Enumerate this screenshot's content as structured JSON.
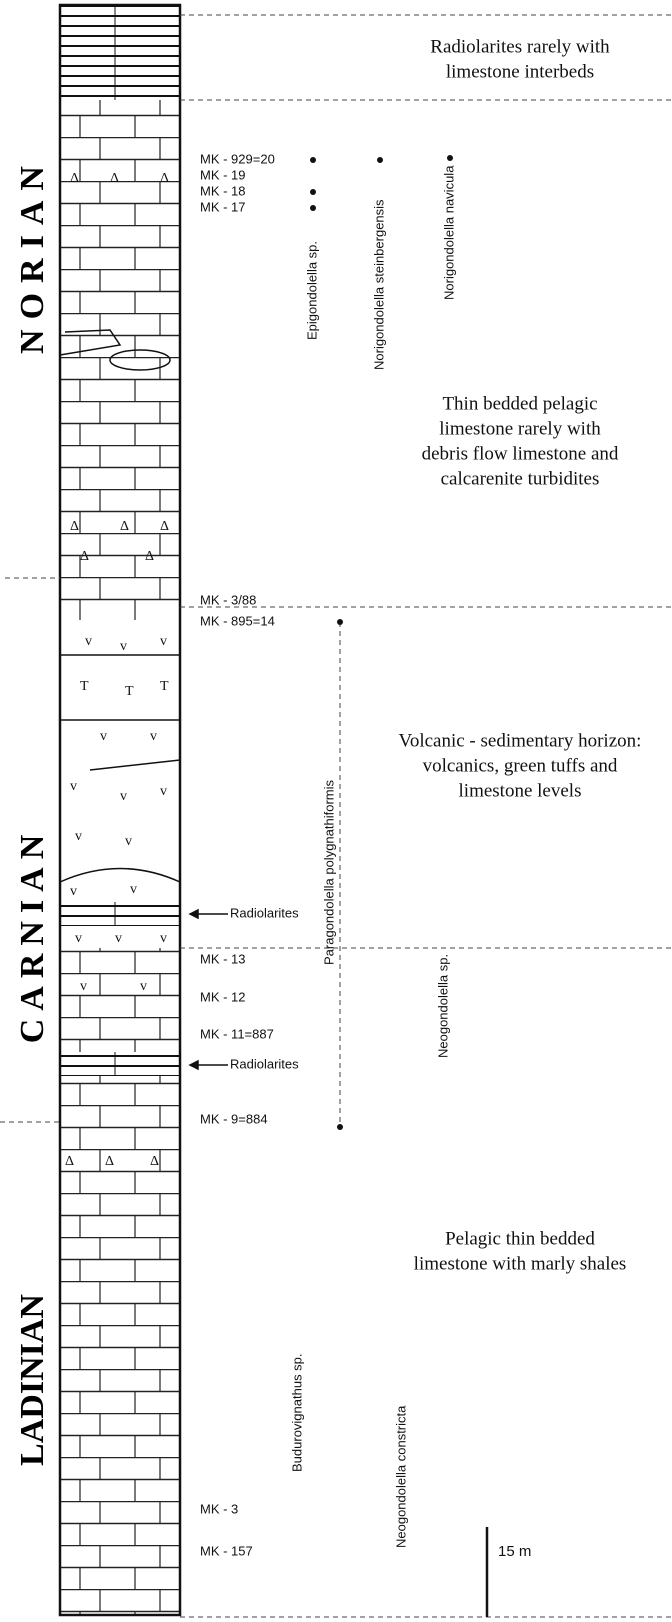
{
  "stages": [
    "NORIAN",
    "CARNIAN",
    "LADINIAN"
  ],
  "descriptions": [
    [
      "Radiolarites rarely with",
      "limestone interbeds"
    ],
    [
      "Thin bedded pelagic",
      "limestone rarely with",
      "debris flow limestone and",
      "calcarenite turbidites"
    ],
    [
      "Volcanic - sedimentary horizon:",
      "volcanics, green tuffs and",
      "limestone levels"
    ],
    [
      "Pelagic thin bedded",
      "limestone with marly shales"
    ]
  ],
  "samples": [
    "MK - 929=20",
    "MK - 19",
    "MK - 18",
    "MK - 17",
    "MK - 3/88",
    "MK - 895=14",
    "MK - 13",
    "MK - 12",
    "MK - 11=887",
    "MK - 9=884",
    "MK - 3",
    "MK - 157"
  ],
  "taxa": [
    "Epigondolella sp.",
    "Norigondolella steinbergensis",
    "Norigondolella navicula",
    "Paragondolella polygnathiformis",
    "Neogondolella sp.",
    "Budurovignathus sp.",
    "Neogondolella constricta"
  ],
  "markers": [
    "Radiolarites",
    "Radiolarites"
  ],
  "scale": "15 m"
}
